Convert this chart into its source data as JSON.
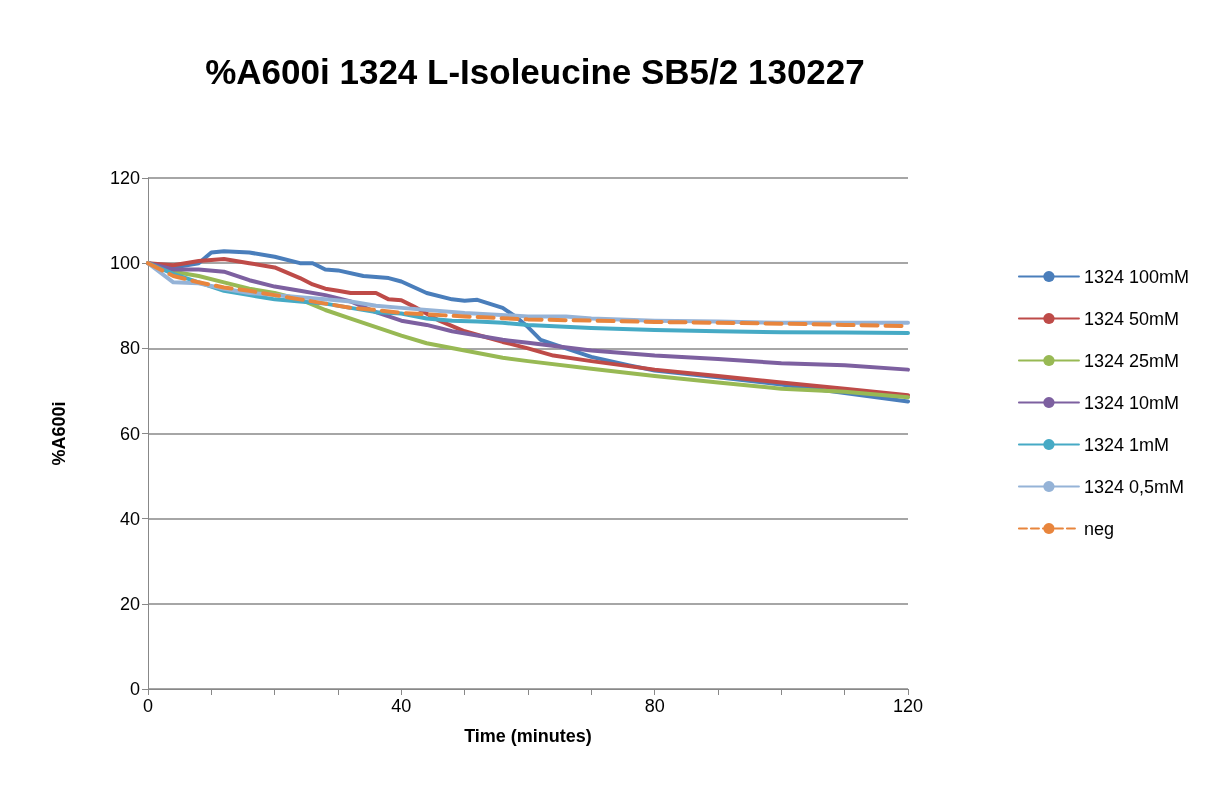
{
  "chart_data": {
    "type": "line",
    "title": "%A600i 1324 L-Isoleucine SB5/2 130227",
    "xlabel": "Time (minutes)",
    "ylabel": "%A600i",
    "xlim": [
      0,
      120
    ],
    "xticks": [
      0,
      {
        "value": 10,
        "label": null
      },
      {
        "value": 20,
        "label": null
      },
      {
        "value": 30,
        "label": null
      },
      40,
      {
        "value": 50,
        "label": null
      },
      {
        "value": 60,
        "label": null
      },
      {
        "value": 70,
        "label": null
      },
      80,
      {
        "value": 90,
        "label": null
      },
      {
        "value": 100,
        "label": null
      },
      {
        "value": 110,
        "label": null
      },
      120
    ],
    "ylim": [
      0,
      120
    ],
    "yticks": [
      0,
      20,
      40,
      60,
      80,
      100,
      120
    ],
    "grid": "y",
    "legend": "right",
    "marker": "none",
    "series": [
      {
        "name": "1324 100mM",
        "color": "#4a7ebb",
        "x": [
          0,
          4,
          8,
          10,
          12,
          16,
          20,
          24,
          26,
          28,
          30,
          34,
          38,
          40,
          44,
          48,
          50,
          52,
          56,
          58,
          60,
          62,
          66,
          70,
          76,
          80,
          90,
          100,
          110,
          120
        ],
        "values": [
          100,
          99,
          100,
          102.5,
          102.8,
          102.5,
          101.5,
          100,
          100,
          98.5,
          98.3,
          97,
          96.5,
          95.7,
          93,
          91.5,
          91.2,
          91.4,
          89.5,
          87.5,
          85,
          82,
          80,
          78,
          76,
          74.8,
          73.2,
          71.5,
          69.5,
          67.5
        ]
      },
      {
        "name": "1324 50mM",
        "color": "#be4b48",
        "x": [
          0,
          4,
          8,
          12,
          16,
          20,
          24,
          26,
          28,
          30,
          32,
          36,
          38,
          40,
          42,
          46,
          50,
          56,
          60,
          64,
          70,
          80,
          90,
          100,
          110,
          120
        ],
        "values": [
          100,
          99.5,
          100.5,
          101,
          100,
          99,
          96.5,
          95,
          94,
          93.5,
          93,
          93,
          91.5,
          91.3,
          89.8,
          86.5,
          84,
          81.5,
          80,
          78.3,
          77,
          75,
          73.5,
          72,
          70.5,
          69
        ]
      },
      {
        "name": "1324 25mM",
        "color": "#98b954",
        "x": [
          0,
          4,
          8,
          12,
          16,
          20,
          24,
          28,
          32,
          36,
          40,
          44,
          50,
          56,
          60,
          70,
          80,
          90,
          100,
          110,
          120
        ],
        "values": [
          100,
          98,
          97,
          95.5,
          94,
          93,
          91.5,
          89,
          87,
          85,
          83,
          81.2,
          79.5,
          77.8,
          77,
          75.2,
          73.5,
          72,
          70.5,
          69.8,
          68.5
        ]
      },
      {
        "name": "1324 10mM",
        "color": "#7d60a0",
        "x": [
          0,
          4,
          8,
          12,
          16,
          20,
          24,
          28,
          32,
          36,
          40,
          44,
          48,
          52,
          56,
          60,
          70,
          80,
          90,
          100,
          110,
          120
        ],
        "values": [
          100,
          98.5,
          98.5,
          98,
          96,
          94.5,
          93.5,
          92.5,
          91,
          88.5,
          86.5,
          85.5,
          84,
          83,
          82,
          81.3,
          79.5,
          78.3,
          77.5,
          76.5,
          76,
          75
        ]
      },
      {
        "name": "1324 1mM",
        "color": "#46aac5",
        "x": [
          0,
          4,
          8,
          12,
          16,
          20,
          24,
          28,
          32,
          36,
          40,
          44,
          48,
          52,
          56,
          60,
          70,
          80,
          90,
          100,
          110,
          120
        ],
        "values": [
          100,
          97.5,
          95.5,
          93.5,
          92.5,
          91.5,
          91,
          90.5,
          89.5,
          88.5,
          88.2,
          87,
          86.5,
          86.3,
          86,
          85.5,
          84.8,
          84.3,
          84,
          83.8,
          83.7,
          83.6
        ]
      },
      {
        "name": "1324 0,5mM",
        "color": "#95b3d7",
        "x": [
          0,
          4,
          8,
          12,
          16,
          20,
          24,
          28,
          32,
          36,
          40,
          50,
          60,
          66,
          70,
          80,
          90,
          100,
          110,
          120
        ],
        "values": [
          100,
          95.5,
          95.3,
          94,
          93,
          92.5,
          92,
          91.5,
          91,
          90,
          89.5,
          88.3,
          87.5,
          87.5,
          87,
          86.5,
          86.3,
          86,
          86,
          86
        ]
      },
      {
        "name": "neg",
        "color": "#e8853d",
        "line_style": "dashed",
        "x": [
          0,
          4,
          8,
          12,
          16,
          20,
          24,
          28,
          32,
          36,
          40,
          50,
          60,
          70,
          80,
          90,
          100,
          110,
          120
        ],
        "values": [
          100,
          97,
          95.5,
          94.3,
          93.5,
          92.5,
          91.5,
          90.5,
          89.5,
          89,
          88.3,
          87.5,
          86.8,
          86.5,
          86.2,
          86,
          85.8,
          85.5,
          85.2
        ]
      }
    ]
  }
}
